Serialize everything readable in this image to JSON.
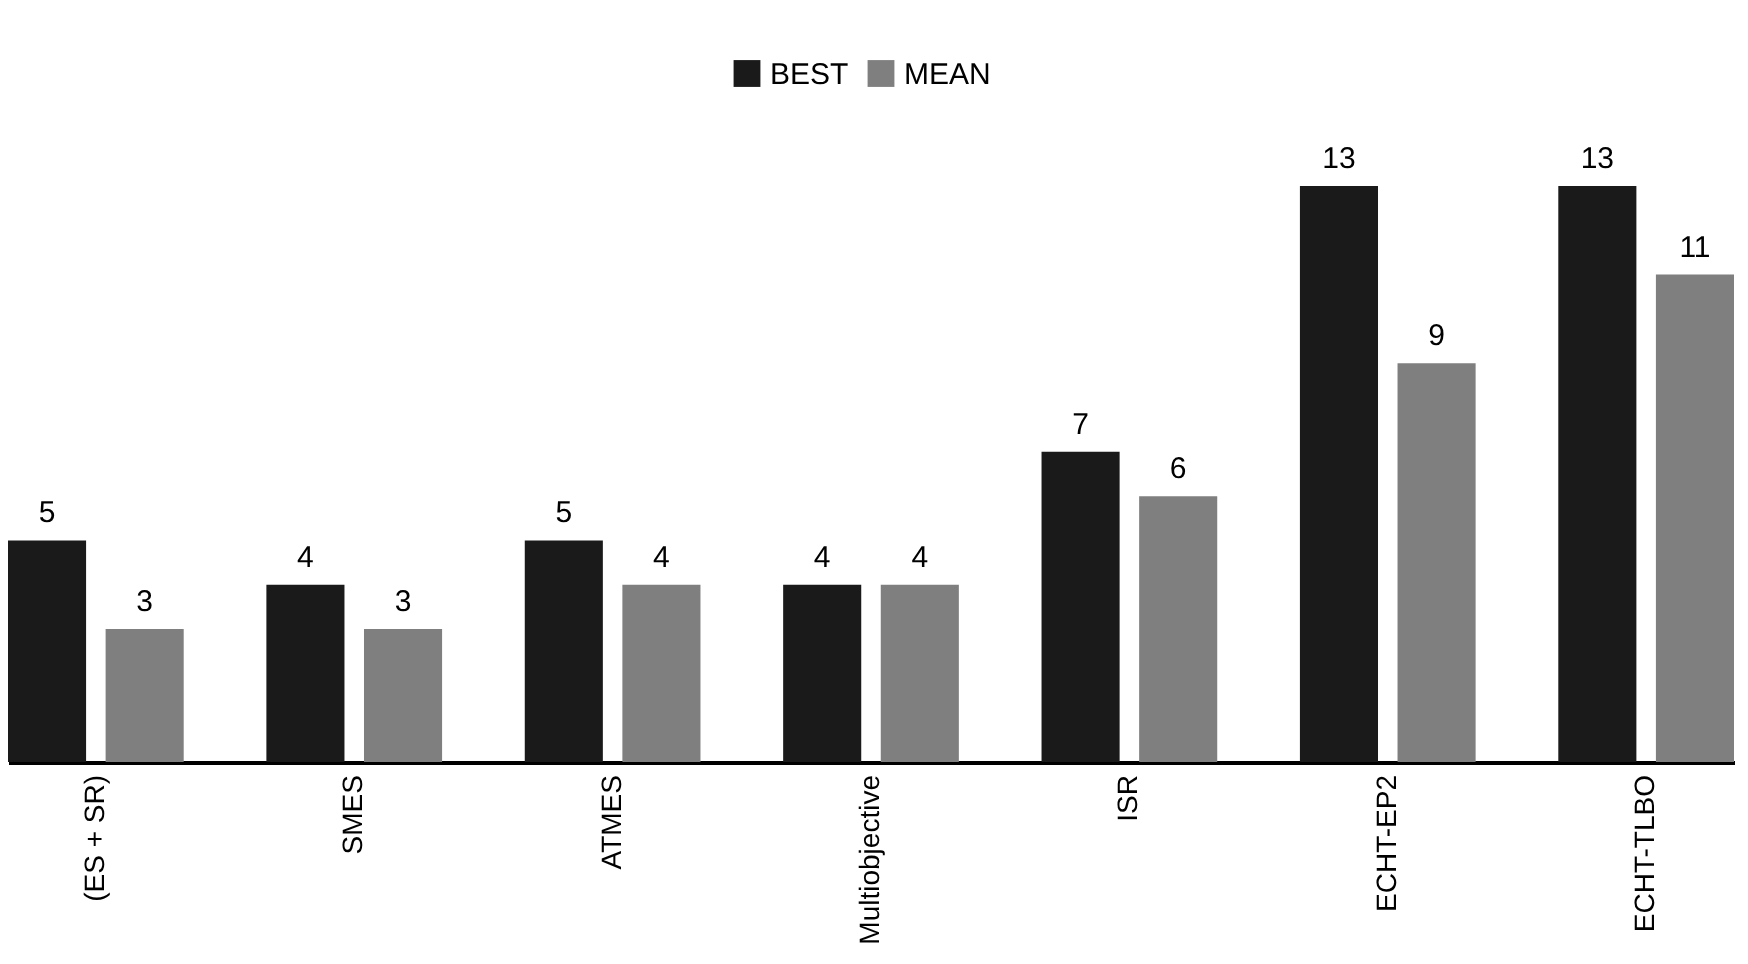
{
  "chart_data": {
    "type": "bar",
    "categories": [
      "(ES + SR)",
      "SMES",
      "ATMES",
      "Multiobjective",
      "ISR",
      "ECHT-EP2",
      "ECHT-TLBO"
    ],
    "series": [
      {
        "name": "BEST",
        "color": "#1a1a1a",
        "values": [
          5,
          4,
          5,
          4,
          7,
          13,
          13
        ]
      },
      {
        "name": "MEAN",
        "color": "#7f7f7f",
        "values": [
          3,
          3,
          4,
          4,
          6,
          9,
          11
        ]
      }
    ],
    "data_labels": true,
    "legend": "top",
    "tick_labels": "x"
  }
}
